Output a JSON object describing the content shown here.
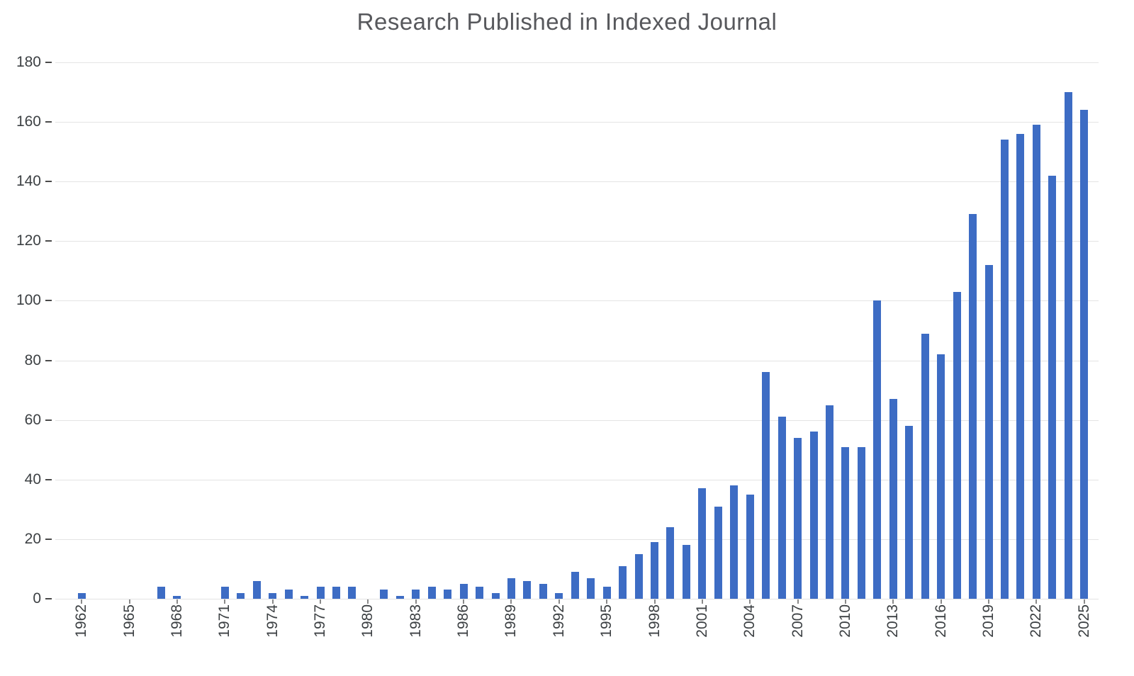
{
  "chart_data": {
    "type": "bar",
    "title": "Research Published in Indexed Journal",
    "xlabel": "",
    "ylabel": "",
    "ylim": [
      0,
      180
    ],
    "yticks": [
      0,
      20,
      40,
      60,
      80,
      100,
      120,
      140,
      160,
      180
    ],
    "grid": true,
    "legend": "none",
    "bar_color": "#3d6cc4",
    "years": [
      1962,
      1963,
      1964,
      1965,
      1966,
      1967,
      1968,
      1969,
      1970,
      1971,
      1972,
      1973,
      1974,
      1975,
      1976,
      1977,
      1978,
      1979,
      1980,
      1981,
      1982,
      1983,
      1984,
      1985,
      1986,
      1987,
      1988,
      1989,
      1990,
      1991,
      1992,
      1993,
      1994,
      1995,
      1996,
      1997,
      1998,
      1999,
      2000,
      2001,
      2002,
      2003,
      2004,
      2005,
      2006,
      2007,
      2008,
      2009,
      2010,
      2011,
      2012,
      2013,
      2014,
      2015,
      2016,
      2017,
      2018,
      2019,
      2020,
      2021,
      2022,
      2023,
      2024,
      2025
    ],
    "values": [
      2,
      0,
      0,
      0,
      0,
      4,
      1,
      0,
      0,
      4,
      2,
      6,
      2,
      3,
      1,
      4,
      4,
      4,
      0,
      3,
      1,
      3,
      4,
      3,
      5,
      4,
      2,
      7,
      6,
      5,
      2,
      9,
      7,
      4,
      11,
      15,
      19,
      24,
      18,
      37,
      31,
      38,
      35,
      76,
      61,
      54,
      56,
      65,
      51,
      51,
      100,
      67,
      58,
      89,
      82,
      103,
      129,
      112,
      154,
      156,
      159,
      142,
      170,
      164
    ],
    "xtick_years": [
      1962,
      1965,
      1968,
      1971,
      1974,
      1977,
      1980,
      1983,
      1986,
      1989,
      1992,
      1995,
      1998,
      2001,
      2004,
      2007,
      2010,
      2013,
      2016,
      2019,
      2022,
      2025
    ]
  }
}
